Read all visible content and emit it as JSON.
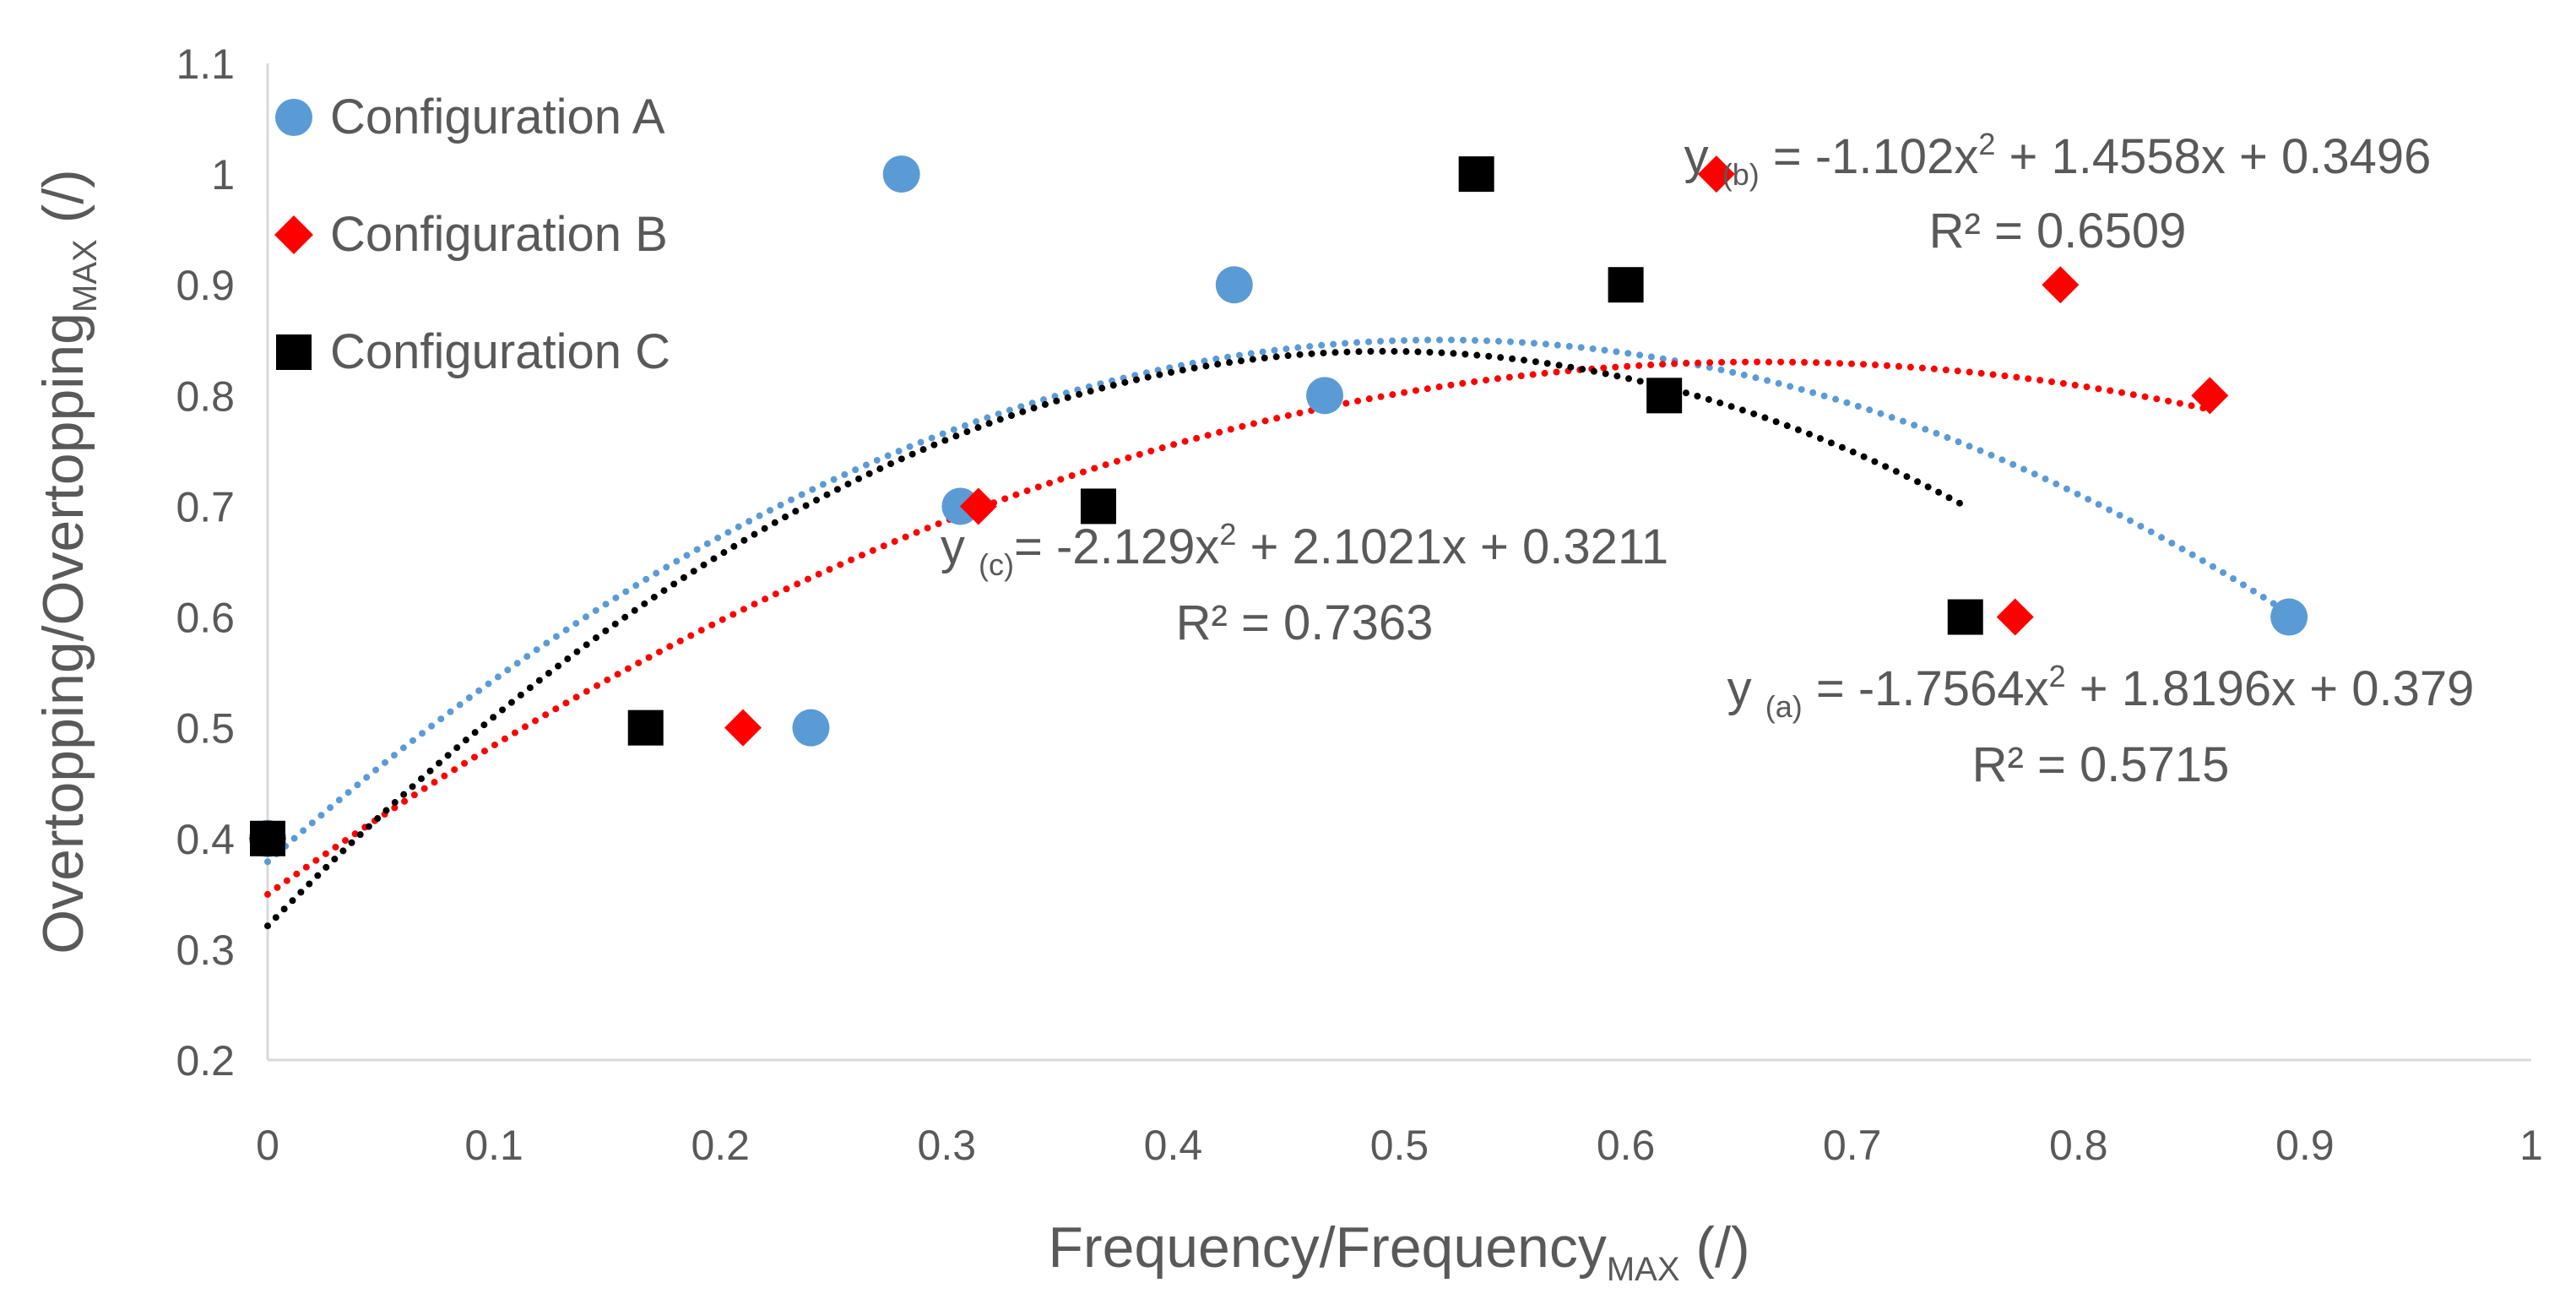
{
  "chart_data": {
    "type": "scatter",
    "xlabel": {
      "main": "Frequency/Frequency",
      "sub": "MAX",
      "suffix": " (/)"
    },
    "ylabel": {
      "main": "Overtopping/Overtopping",
      "sub": "MAX",
      "suffix": " (/)"
    },
    "xlim": [
      0,
      1
    ],
    "ylim": [
      0.2,
      1.1
    ],
    "xticks": [
      0,
      0.1,
      0.2,
      0.3,
      0.4,
      0.5,
      0.6,
      0.7,
      0.8,
      0.9,
      1
    ],
    "xtick_labels": [
      "0",
      "0.1",
      "0.2",
      "0.3",
      "0.4",
      "0.5",
      "0.6",
      "0.7",
      "0.8",
      "0.9",
      "1"
    ],
    "yticks": [
      0.2,
      0.3,
      0.4,
      0.5,
      0.6,
      0.7,
      0.8,
      0.9,
      1,
      1.1
    ],
    "ytick_labels": [
      "0.2",
      "0.3",
      "0.4",
      "0.5",
      "0.6",
      "0.7",
      "0.8",
      "0.9",
      "1",
      "1.1"
    ],
    "grid": false,
    "legend_position": "top-left",
    "series": [
      {
        "name": "Configuration A",
        "marker": "circle",
        "color": "#5B9BD5",
        "points": [
          [
            0.0,
            0.4
          ],
          [
            0.24,
            0.5
          ],
          [
            0.28,
            1.0
          ],
          [
            0.306,
            0.7
          ],
          [
            0.427,
            0.9
          ],
          [
            0.467,
            0.8
          ],
          [
            0.893,
            0.6
          ]
        ],
        "trend": {
          "a": -1.7564,
          "b": 1.8196,
          "c": 0.379,
          "x_range": [
            0,
            0.893
          ]
        }
      },
      {
        "name": "Configuration B",
        "marker": "diamond",
        "color": "#FF0000",
        "points": [
          [
            0.0,
            0.4
          ],
          [
            0.21,
            0.5
          ],
          [
            0.314,
            0.7
          ],
          [
            0.64,
            1.0
          ],
          [
            0.772,
            0.6
          ],
          [
            0.792,
            0.9
          ],
          [
            0.858,
            0.8
          ]
        ],
        "trend": {
          "a": -1.102,
          "b": 1.4558,
          "c": 0.3496,
          "x_range": [
            0,
            0.858
          ]
        }
      },
      {
        "name": "Configuration C",
        "marker": "square",
        "color": "#000000",
        "points": [
          [
            0.0,
            0.4
          ],
          [
            0.167,
            0.5
          ],
          [
            0.367,
            0.7
          ],
          [
            0.534,
            1.0
          ],
          [
            0.6,
            0.9
          ],
          [
            0.617,
            0.8
          ],
          [
            0.75,
            0.6
          ]
        ],
        "trend": {
          "a": -2.129,
          "b": 2.1021,
          "c": 0.3211,
          "x_range": [
            0,
            0.75
          ]
        }
      }
    ],
    "annotations": [
      {
        "id": "eq-a",
        "lead": "y ",
        "sub": "(a)",
        "body": " = -1.7564x",
        "sup": "2",
        "tail": " + 1.8196x + 0.379",
        "r2": "R² = 0.5715"
      },
      {
        "id": "eq-b",
        "lead": "y ",
        "sub": "(b)",
        "body": " = -1.102x",
        "sup": "2",
        "tail": " + 1.4558x + 0.3496",
        "r2": "R² = 0.6509"
      },
      {
        "id": "eq-c",
        "lead": "y ",
        "sub": "(c)",
        "body": "= -2.129x",
        "sup": "2",
        "tail": " + 2.1021x + 0.3211",
        "r2": "R² = 0.7363"
      }
    ]
  }
}
